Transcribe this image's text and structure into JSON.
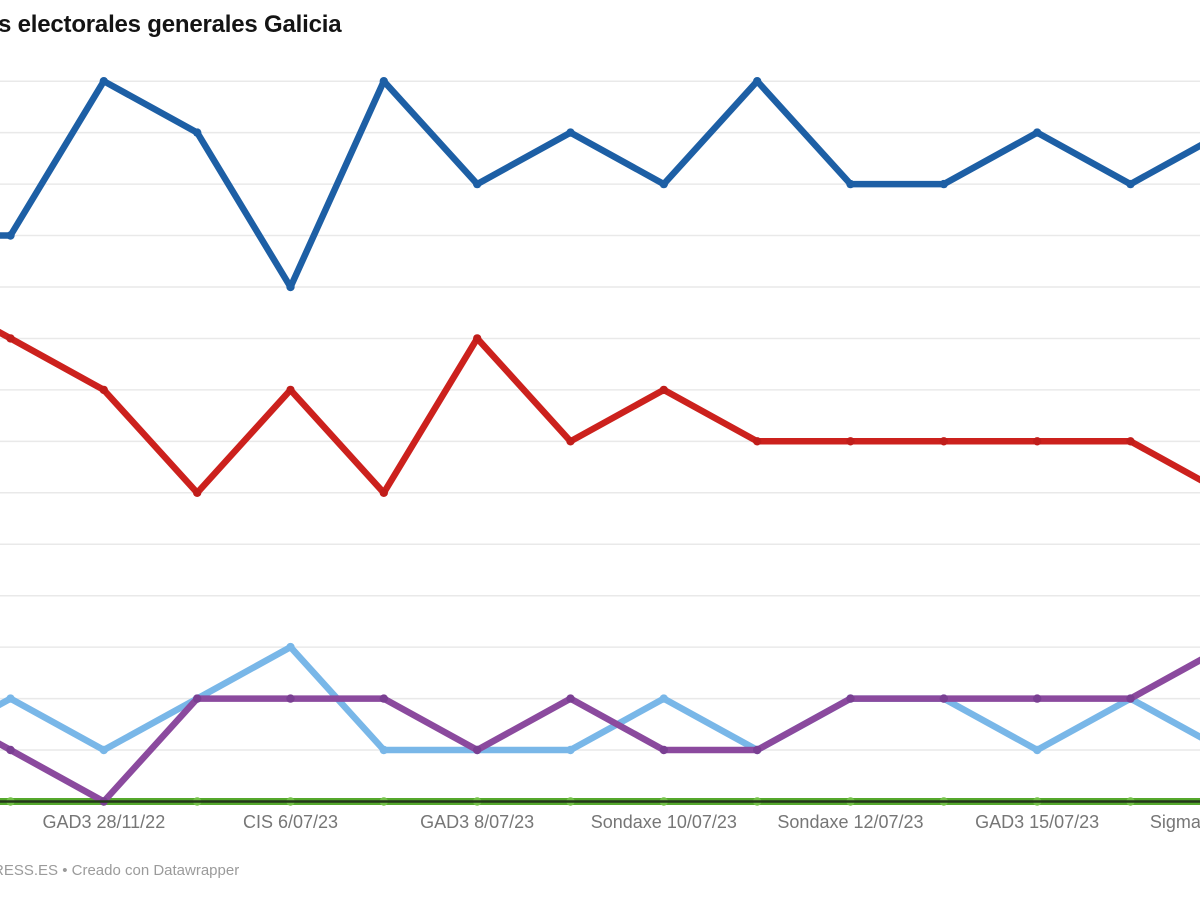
{
  "title": "s electorales generales Galicia",
  "footer": "RESS.ES • Creado con Datawrapper",
  "colors": {
    "background": "#ffffff",
    "title": "#141414",
    "gridline": "#e9e9e9",
    "axis_baseline": "#24381a",
    "tick_label": "#767676",
    "footer": "#9b9b9b"
  },
  "chart_data": {
    "type": "line",
    "title": "s electorales generales Galicia",
    "xlabel": "",
    "ylabel": "",
    "grid": true,
    "legend_position": "none",
    "y_min": 0,
    "y_max": 14,
    "y_gridline_step": 1,
    "x_index_range": [
      -1,
      13
    ],
    "x_tick_labels": [
      {
        "index": 1,
        "label": "GAD3 28/11/22",
        "anchor": "center"
      },
      {
        "index": 3,
        "label": "CIS 6/07/23",
        "anchor": "center"
      },
      {
        "index": 5,
        "label": "GAD3 8/07/23",
        "anchor": "center"
      },
      {
        "index": 7,
        "label": "Sondaxe 10/07/23",
        "anchor": "center"
      },
      {
        "index": 9,
        "label": "Sondaxe 12/07/23",
        "anchor": "center"
      },
      {
        "index": 11,
        "label": "GAD3 15/07/23",
        "anchor": "center"
      },
      {
        "index": 13,
        "label": "Sigma",
        "anchor": "left"
      }
    ],
    "series": [
      {
        "name": "dark-blue-line",
        "color": "#1d5fa5",
        "dot_color": "#1d5fa5",
        "width": 6.5,
        "values": [
          11,
          11,
          14,
          13,
          10,
          14,
          12,
          13,
          12,
          14,
          12,
          12,
          13,
          12,
          13
        ]
      },
      {
        "name": "red-line",
        "color": "#cc211d",
        "dot_color": "#c01d1a",
        "width": 6.5,
        "values": [
          10,
          9,
          8,
          6,
          8,
          6,
          9,
          7,
          8,
          7,
          7,
          7,
          7,
          7,
          6
        ]
      },
      {
        "name": "light-blue-line",
        "color": "#79b7e8",
        "dot_color": "#79b7e8",
        "width": 6.5,
        "values": [
          1,
          2,
          1,
          2,
          3,
          1,
          1,
          1,
          2,
          1,
          2,
          2,
          1,
          2,
          1
        ]
      },
      {
        "name": "green-line",
        "color": "#55a82c",
        "dot_color": "#72c046",
        "width": 7,
        "values": [
          0,
          0,
          0,
          0,
          0,
          0,
          0,
          0,
          0,
          0,
          0,
          0,
          0,
          0,
          0
        ]
      },
      {
        "name": "purple-line",
        "color": "#8b4a9e",
        "dot_color": "#7a3f92",
        "width": 6.5,
        "values": [
          2,
          1,
          0,
          2,
          2,
          2,
          1,
          2,
          1,
          1,
          2,
          2,
          2,
          2,
          3
        ]
      }
    ]
  }
}
